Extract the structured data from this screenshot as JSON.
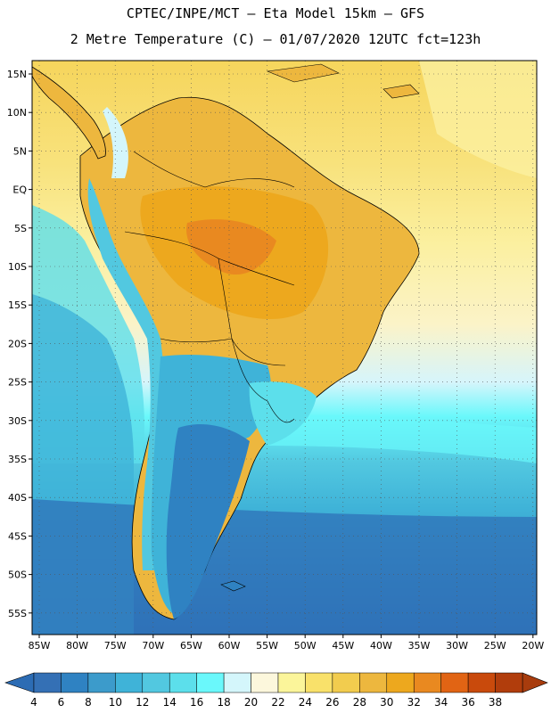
{
  "title": {
    "line1": "CPTEC/INPE/MCT –  Eta Model 15km – GFS",
    "line2": "2 Metre Temperature (C) – 01/07/2020 12UTC fct=123h"
  },
  "map": {
    "lat_labels": [
      "15N",
      "10N",
      "5N",
      "EQ",
      "5S",
      "10S",
      "15S",
      "20S",
      "25S",
      "30S",
      "35S",
      "40S",
      "45S",
      "50S",
      "55S"
    ],
    "lon_labels": [
      "85W",
      "80W",
      "75W",
      "70W",
      "65W",
      "60W",
      "55W",
      "50W",
      "45W",
      "40W",
      "35W",
      "30W",
      "25W",
      "20W"
    ],
    "gridlines": "dotted"
  },
  "colorbar": {
    "labels": [
      "4",
      "6",
      "8",
      "10",
      "12",
      "14",
      "16",
      "18",
      "20",
      "22",
      "24",
      "26",
      "28",
      "30",
      "32",
      "34",
      "36",
      "38"
    ],
    "colors": [
      "#3470b5",
      "#2f82c2",
      "#3c9bcb",
      "#3fb3d8",
      "#52c8e0",
      "#5cdfeb",
      "#6af8fb",
      "#d4f6fb",
      "#fcf7dc",
      "#fbf59a",
      "#f9e16a",
      "#f2cc4e",
      "#edb73e",
      "#eda81e",
      "#e98920",
      "#e16414",
      "#c94a0c",
      "#b13d0c"
    ],
    "low_end_color": "#2c6cb4",
    "high_end_color": "#a83c0d"
  }
}
